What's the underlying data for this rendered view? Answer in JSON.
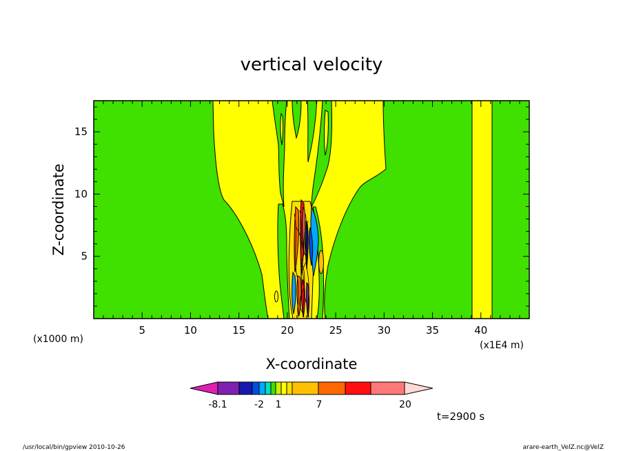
{
  "chart_data": {
    "type": "heatmap",
    "title": "vertical velocity",
    "xlabel": "X-coordinate",
    "ylabel": "Z-coordinate",
    "x_unit": "(x1000 m)",
    "x_unit_right": "(x1E4 m)",
    "xlim": [
      0,
      45
    ],
    "ylim": [
      0,
      17.5
    ],
    "xticks": [
      5,
      10,
      15,
      20,
      25,
      30,
      35,
      40
    ],
    "yticks": [
      5,
      10,
      15
    ],
    "colorbar": {
      "colors": [
        "#e020b0",
        "#8020b0",
        "#1818b0",
        "#0050e0",
        "#00a8ff",
        "#00e0c0",
        "#40e000",
        "#c8f000",
        "#ffff00",
        "#ffe000",
        "#ffc000",
        "#ff6800",
        "#ff1010",
        "#ff7878",
        "#ffb8b8",
        "#ffd8d8"
      ],
      "tick_labels": [
        "-8.1",
        "-2",
        "1",
        "7",
        "20"
      ]
    },
    "time_label": "t=2900 s"
  },
  "footer": {
    "left": "/usr/local/bin/gpview  2010-10-26",
    "right": "arare-earth_VelZ.nc@VelZ"
  }
}
